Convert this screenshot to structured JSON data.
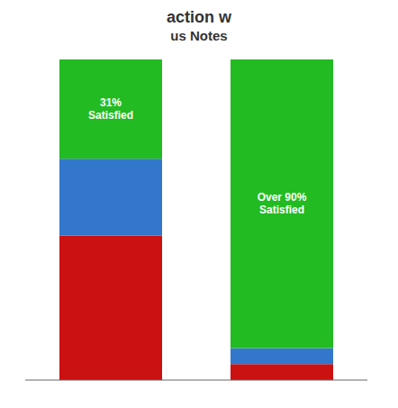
{
  "chart_data": {
    "type": "bar",
    "title": "action w",
    "subtitle": "us Notes",
    "categories": [
      null,
      null
    ],
    "series": [
      {
        "color": "#cc1111",
        "values": [
          45,
          5
        ]
      },
      {
        "color": "#3377cc",
        "values": [
          24,
          5
        ]
      },
      {
        "color": "#22bb22",
        "values": [
          31,
          90
        ],
        "value_labels": [
          "31%\nSatisfied",
          "Over 90%\nSatisfied"
        ]
      }
    ],
    "stacked": true,
    "ylim": [
      0,
      100
    ],
    "grid": false,
    "tick_labels": false
  }
}
